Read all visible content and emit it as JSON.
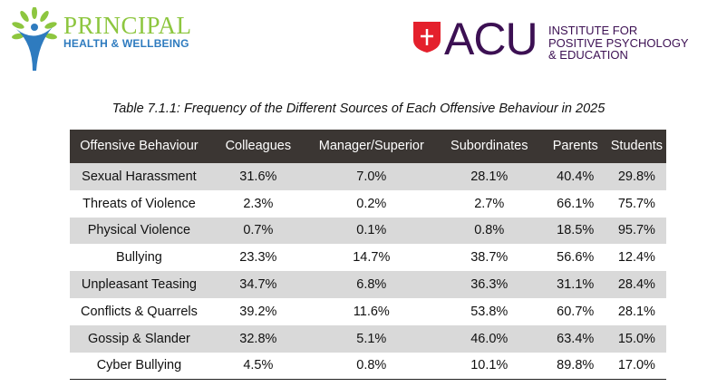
{
  "logos": {
    "left": {
      "line1": "PRINCIPAL",
      "line2": "HEALTH & WELLBEING"
    },
    "right": {
      "name": "ACU",
      "sub": [
        "INSTITUTE FOR",
        "POSITIVE PSYCHOLOGY",
        "& EDUCATION"
      ]
    }
  },
  "caption": "Table 7.1.1: Frequency of the Different Sources of Each Offensive Behaviour in 2025",
  "table": {
    "headers": [
      "Offensive Behaviour",
      "Colleagues",
      "Manager/Superior",
      "Subordinates",
      "Parents",
      "Students"
    ],
    "rows": [
      [
        "Sexual Harassment",
        "31.6%",
        "7.0%",
        "28.1%",
        "40.4%",
        "29.8%"
      ],
      [
        "Threats of Violence",
        "2.3%",
        "0.2%",
        "2.7%",
        "66.1%",
        "75.7%"
      ],
      [
        "Physical Violence",
        "0.7%",
        "0.1%",
        "0.8%",
        "18.5%",
        "95.7%"
      ],
      [
        "Bullying",
        "23.3%",
        "14.7%",
        "38.7%",
        "56.6%",
        "12.4%"
      ],
      [
        "Unpleasant Teasing",
        "34.7%",
        "6.8%",
        "36.3%",
        "31.1%",
        "28.4%"
      ],
      [
        "Conflicts & Quarrels",
        "39.2%",
        "11.6%",
        "53.8%",
        "60.7%",
        "28.1%"
      ],
      [
        "Gossip & Slander",
        "32.8%",
        "5.1%",
        "46.0%",
        "63.4%",
        "15.0%"
      ],
      [
        "Cyber Bullying",
        "4.5%",
        "0.8%",
        "10.1%",
        "89.8%",
        "17.0%"
      ]
    ]
  },
  "colors": {
    "header_bg": "#3b3633",
    "alt_row": "#d9d9d9",
    "acu_purple": "#3c1053",
    "acu_red": "#e4202c"
  }
}
